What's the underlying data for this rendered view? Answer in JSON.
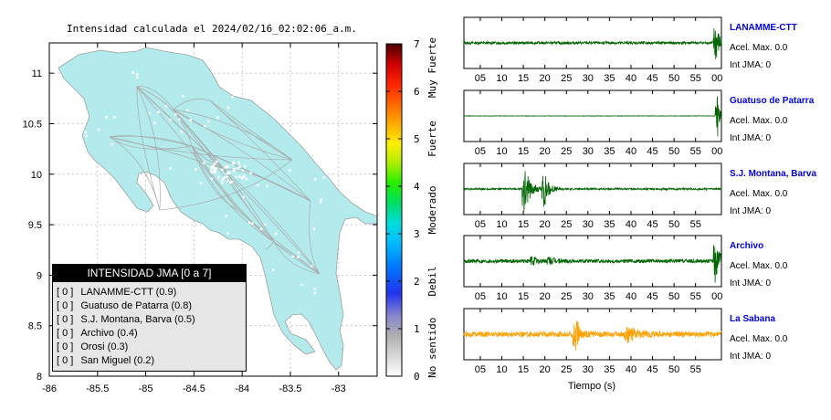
{
  "map": {
    "title": "Intensidad calculada el 2024/02/16_02:02:06_a.m.",
    "xticks": [
      "-86",
      "-85.5",
      "-85",
      "-84.5",
      "-84",
      "-83.5",
      "-83"
    ],
    "yticks": [
      "11",
      "10.5",
      "10",
      "9.5",
      "9",
      "8.5",
      "8"
    ],
    "land_color": "#b3ebed",
    "road_color": "#a9a9a9"
  },
  "legend": {
    "title": "INTENSIDAD JMA [0 a 7]",
    "items": [
      {
        "bracket": "[ 0 ]",
        "label": "LANAMME-CTT (0.9)"
      },
      {
        "bracket": "[ 0 ]",
        "label": "Guatuso de Patarra (0.8)"
      },
      {
        "bracket": "[ 0 ]",
        "label": "S.J. Montana, Barva (0.5)"
      },
      {
        "bracket": "[ 0 ]",
        "label": "Archivo (0.4)"
      },
      {
        "bracket": "[ 0 ]",
        "label": "Orosi (0.3)"
      },
      {
        "bracket": "[ 0 ]",
        "label": "San Miguel (0.2)"
      }
    ]
  },
  "colorbar": {
    "ticks": [
      "7",
      "6",
      "5",
      "4",
      "3",
      "2",
      "1",
      "0"
    ],
    "labels": [
      {
        "text": "Muy Fuerte",
        "level": 6.5
      },
      {
        "text": "Fuerte",
        "level": 5
      },
      {
        "text": "Moderado",
        "level": 3.5
      },
      {
        "text": "Debil",
        "level": 2
      },
      {
        "text": "No sentido",
        "level": 0.6
      }
    ]
  },
  "chart_data": [
    {
      "type": "scatter",
      "title": "Intensidad calculada el 2024/02/16_02:02:06_a.m.",
      "xlim": [
        -86,
        -82.6
      ],
      "ylim": [
        8,
        11.3
      ],
      "x_ticks": [
        -86,
        -85.5,
        -85,
        -84.5,
        -84,
        -83.5,
        -83
      ],
      "y_ticks": [
        11,
        10.5,
        10,
        9.5,
        9,
        8.5,
        8
      ],
      "colorbar": {
        "min": 0,
        "max": 7,
        "ticks": [
          0,
          1,
          2,
          3,
          4,
          5,
          6,
          7
        ]
      }
    },
    {
      "type": "line",
      "xlabel": "Tiempo (s)",
      "x_ticks": [
        "05",
        "10",
        "15",
        "20",
        "25",
        "30",
        "35",
        "40",
        "45",
        "50",
        "55"
      ],
      "series": [
        {
          "name": "LANAMME-CTT",
          "color": "#006400",
          "accel_label": "Acel. Max. 0.0",
          "jma_label": "Int JMA: 0",
          "ticks_extra": "00",
          "bursts": [
            [
              59.6,
              0.9,
              1.0
            ]
          ],
          "noise": 0.06
        },
        {
          "name": "Guatuso de Patarra",
          "color": "#006400",
          "accel_label": "Acel. Max. 0.0",
          "jma_label": "Int JMA: 0",
          "ticks_extra": "00",
          "bursts": [
            [
              60.1,
              0.5,
              1.0
            ]
          ],
          "noise": 0.01
        },
        {
          "name": "S.J. Montana, Barva",
          "color": "#006400",
          "accel_label": "Acel. Max. 0.0",
          "jma_label": "Int JMA: 0",
          "ticks_extra": "",
          "bursts": [
            [
              15.2,
              1.4,
              1.0
            ],
            [
              19.8,
              1.0,
              0.85
            ]
          ],
          "noise": 0.04
        },
        {
          "name": "Archivo",
          "color": "#006400",
          "accel_label": "Acel. Max. 0.0",
          "jma_label": "Int JMA: 0",
          "ticks_extra": "00",
          "bursts": [
            [
              17.0,
              1.5,
              0.18
            ],
            [
              21.0,
              2.0,
              0.12
            ],
            [
              59.6,
              0.9,
              1.0
            ]
          ],
          "noise": 0.08
        },
        {
          "name": "La Sabana",
          "color": "#ff9f00",
          "accel_label": "Acel. Max. 0.0",
          "jma_label": "Int JMA: 0",
          "ticks_extra": "",
          "bursts": [
            [
              27.0,
              0.8,
              1.0
            ],
            [
              39.0,
              2.5,
              0.35
            ]
          ],
          "noise": 0.12
        }
      ]
    }
  ]
}
